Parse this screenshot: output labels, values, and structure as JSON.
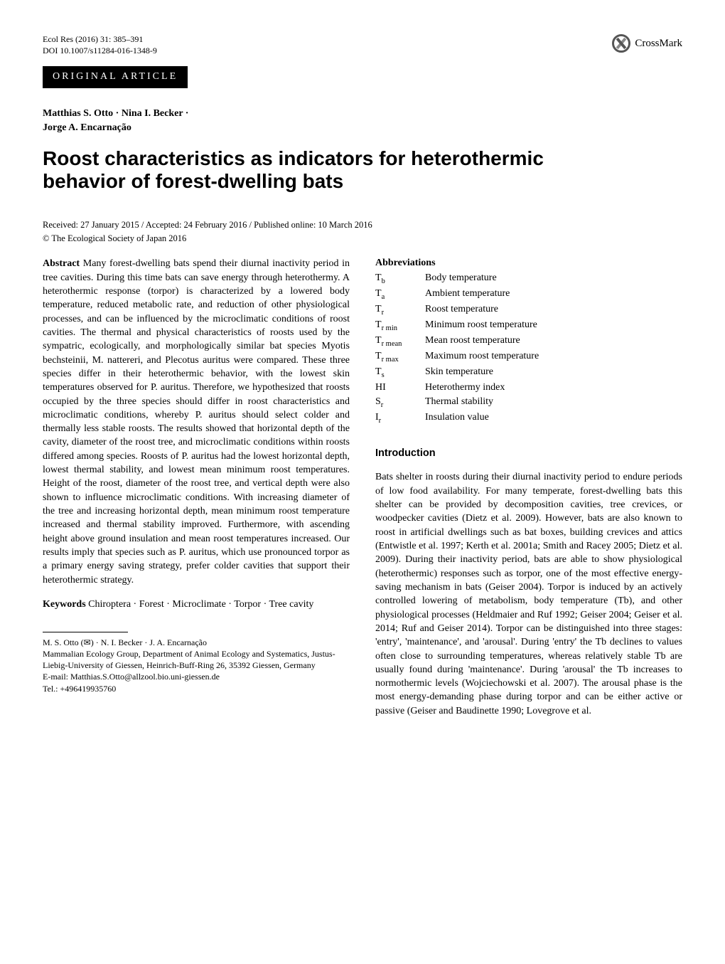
{
  "header": {
    "journal": "Ecol Res (2016) 31: 385–391",
    "doi": "DOI 10.1007/s11284-016-1348-9",
    "crossmark_label": "CrossMark",
    "section_band": "ORIGINAL ARTICLE"
  },
  "authors": {
    "line1": "Matthias S. Otto · Nina I. Becker ·",
    "line2": "Jorge A. Encarnação"
  },
  "title": "Roost characteristics as indicators for heterothermic behavior of forest-dwelling bats",
  "received": "Received: 27 January 2015 / Accepted: 24 February 2016 / Published online: 10 March 2016",
  "copyright": "© The Ecological Society of Japan 2016",
  "abstract": {
    "label": "Abstract",
    "body": "Many forest-dwelling bats spend their diurnal inactivity period in tree cavities. During this time bats can save energy through heterothermy. A heterothermic response (torpor) is characterized by a lowered body temperature, reduced metabolic rate, and reduction of other physiological processes, and can be influenced by the microclimatic conditions of roost cavities. The thermal and physical characteristics of roosts used by the sympatric, ecologically, and morphologically similar bat species Myotis bechsteinii, M. nattereri, and Plecotus auritus were compared. These three species differ in their heterothermic behavior, with the lowest skin temperatures observed for P. auritus. Therefore, we hypothesized that roosts occupied by the three species should differ in roost characteristics and microclimatic conditions, whereby P. auritus should select colder and thermally less stable roosts. The results showed that horizontal depth of the cavity, diameter of the roost tree, and microclimatic conditions within roosts differed among species. Roosts of P. auritus had the lowest horizontal depth, lowest thermal stability, and lowest mean minimum roost temperatures. Height of the roost, diameter of the roost tree, and vertical depth were also shown to influence microclimatic conditions. With increasing diameter of the tree and increasing horizontal depth, mean minimum roost temperature increased and thermal stability improved. Furthermore, with ascending height above ground insulation and mean roost temperatures increased. Our results imply that species such as P. auritus, which use pronounced torpor as a primary energy saving strategy, prefer colder cavities that support their heterothermic strategy."
  },
  "keywords": {
    "label": "Keywords",
    "body": "Chiroptera · Forest · Microclimate · Torpor · Tree cavity"
  },
  "footnote": {
    "l1": "M. S. Otto (✉) · N. I. Becker · J. A. Encarnação",
    "l2": "Mammalian Ecology Group, Department of Animal Ecology and Systematics, Justus-Liebig-University of Giessen, Heinrich-Buff-Ring 26, 35392 Giessen, Germany",
    "l3": "E-mail: Matthias.S.Otto@allzool.bio.uni-giessen.de",
    "l4": "Tel.: +496419935760"
  },
  "abbreviations": {
    "heading": "Abbreviations",
    "rows": [
      {
        "sym": "T",
        "sub": "b",
        "desc": "Body temperature"
      },
      {
        "sym": "T",
        "sub": "a",
        "desc": "Ambient temperature"
      },
      {
        "sym": "T",
        "sub": "r",
        "desc": "Roost temperature"
      },
      {
        "sym": "T",
        "sub": "r min",
        "desc": "Minimum roost temperature"
      },
      {
        "sym": "T",
        "sub": "r mean",
        "desc": "Mean roost temperature"
      },
      {
        "sym": "T",
        "sub": "r max",
        "desc": "Maximum roost temperature"
      },
      {
        "sym": "T",
        "sub": "s",
        "desc": "Skin temperature"
      },
      {
        "sym": "HI",
        "sub": "",
        "desc": "Heterothermy index"
      },
      {
        "sym": "S",
        "sub": "r",
        "desc": "Thermal stability"
      },
      {
        "sym": "I",
        "sub": "r",
        "desc": "Insulation value"
      }
    ]
  },
  "introduction": {
    "heading": "Introduction",
    "body": "Bats shelter in roosts during their diurnal inactivity period to endure periods of low food availability. For many temperate, forest-dwelling bats this shelter can be provided by decomposition cavities, tree crevices, or woodpecker cavities (Dietz et al. 2009). However, bats are also known to roost in artificial dwellings such as bat boxes, building crevices and attics (Entwistle et al. 1997; Kerth et al. 2001a; Smith and Racey 2005; Dietz et al. 2009). During their inactivity period, bats are able to show physiological (heterothermic) responses such as torpor, one of the most effective energy-saving mechanism in bats (Geiser 2004). Torpor is induced by an actively controlled lowering of metabolism, body temperature (Tb), and other physiological processes (Heldmaier and Ruf 1992; Geiser 2004; Geiser et al. 2014; Ruf and Geiser 2014). Torpor can be distinguished into three stages: 'entry', 'maintenance', and 'arousal'. During 'entry' the Tb declines to values often close to surrounding temperatures, whereas relatively stable Tb are usually found during 'maintenance'. During 'arousal' the Tb increases to normothermic levels (Wojciechowski et al. 2007). The arousal phase is the most energy-demanding phase during torpor and can be either active or passive (Geiser and Baudinette 1990; Lovegrove et al."
  }
}
